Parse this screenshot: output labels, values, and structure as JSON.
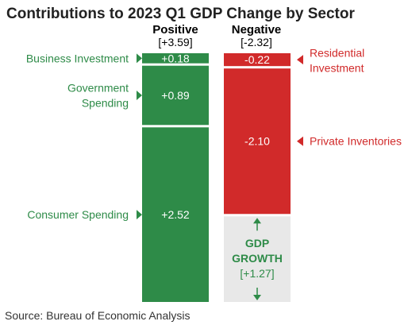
{
  "title": "Contributions to 2023 Q1 GDP Change by Sector",
  "source": "Source: Bureau of Economic Analysis",
  "colors": {
    "positive": "#2e8b48",
    "negative": "#d12a2a",
    "growth_box": "#e8e8e8"
  },
  "chart_data": {
    "type": "bar",
    "title": "Contributions to 2023 Q1 GDP Change by Sector",
    "series": [
      {
        "name": "Positive",
        "total_label": "[+3.59]",
        "total": 3.59,
        "segments": [
          {
            "category": "Business Investment",
            "label_lines": [
              "Business Investment"
            ],
            "value": 0.18,
            "value_label": "+0.18"
          },
          {
            "category": "Government Spending",
            "label_lines": [
              "Government",
              "Spending"
            ],
            "value": 0.89,
            "value_label": "+0.89"
          },
          {
            "category": "Consumer Spending",
            "label_lines": [
              "Consumer Spending"
            ],
            "value": 2.52,
            "value_label": "+2.52"
          }
        ]
      },
      {
        "name": "Negative",
        "total_label": "[-2.32]",
        "total": -2.32,
        "segments": [
          {
            "category": "Residential Investment",
            "label_lines": [
              "Residential",
              "Investment"
            ],
            "value": -0.22,
            "value_label": "-0.22"
          },
          {
            "category": "Private Inventories",
            "label_lines": [
              "Private Inventories"
            ],
            "value": -2.1,
            "value_label": "-2.10"
          }
        ]
      }
    ],
    "gdp_growth": {
      "label_lines": [
        "GDP",
        "GROWTH"
      ],
      "value": 1.27,
      "value_label": "[+1.27]"
    }
  }
}
